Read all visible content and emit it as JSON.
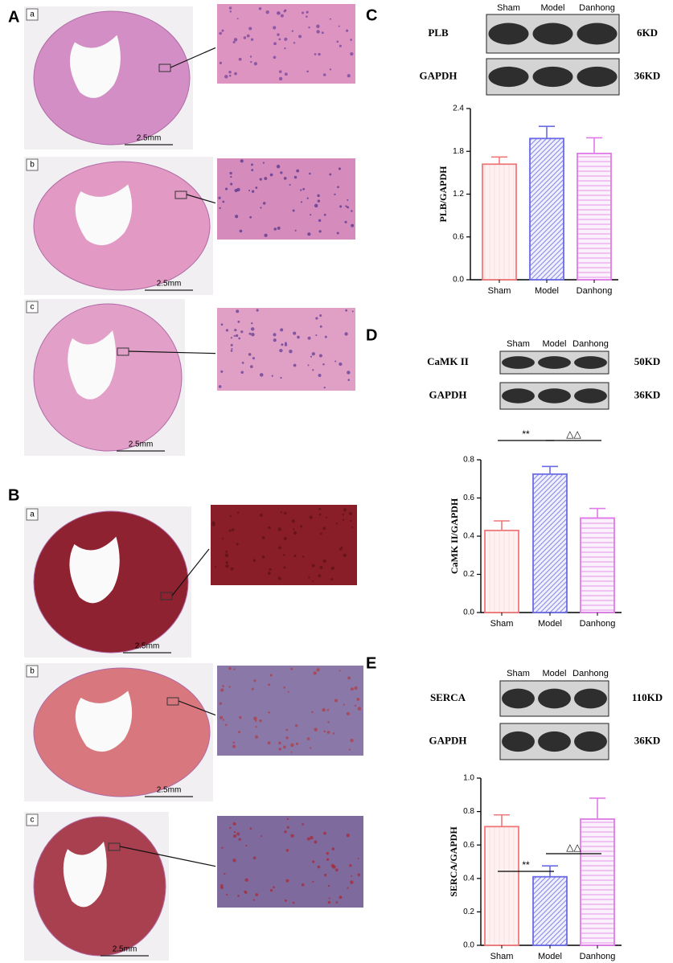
{
  "histology": [
    {
      "label": "A",
      "rows": [
        {
          "label": "a",
          "scale": "2.5mm"
        },
        {
          "label": "b",
          "scale": "2.5mm"
        },
        {
          "label": "c",
          "scale": "2.5mm"
        }
      ]
    },
    {
      "label": "B",
      "rows": [
        {
          "label": "a",
          "scale": "2.5mm"
        },
        {
          "label": "b",
          "scale": "2.5mm"
        },
        {
          "label": "c",
          "scale": "2.5mm"
        }
      ]
    }
  ],
  "blots": [
    {
      "label": "C",
      "lanes": [
        "Sham",
        "Model",
        "Danhong"
      ],
      "bands": [
        {
          "name": "PLB",
          "size": "6KD"
        },
        {
          "name": "GAPDH",
          "size": "36KD"
        }
      ]
    },
    {
      "label": "D",
      "lanes": [
        "Sham",
        "Model",
        "Danhong"
      ],
      "bands": [
        {
          "name": "CaMK II",
          "size": "50KD"
        },
        {
          "name": "GAPDH",
          "size": "36KD"
        }
      ]
    },
    {
      "label": "E",
      "lanes": [
        "Sham",
        "Model",
        "Danhong"
      ],
      "bands": [
        {
          "name": "SERCA",
          "size": "110KD"
        },
        {
          "name": "GAPDH",
          "size": "36KD"
        }
      ]
    }
  ],
  "chart_data": [
    {
      "type": "bar",
      "ylabel": "PLB/GAPDH",
      "categories": [
        "Sham",
        "Model",
        "Danhong"
      ],
      "values": [
        1.62,
        1.98,
        1.77
      ],
      "errors": [
        0.1,
        0.17,
        0.22
      ],
      "colors": [
        "#f07878",
        "#6b6be6",
        "#e07ae8"
      ],
      "ylim": [
        0,
        2.4
      ],
      "yticks": [
        {
          "value": 0,
          "label": "0.0"
        },
        0.6,
        1.2,
        1.8,
        2.4
      ],
      "annotations": []
    },
    {
      "type": "bar",
      "ylabel": "CaMK II/GAPDH",
      "categories": [
        "Sham",
        "Model",
        "Danhong"
      ],
      "values": [
        0.43,
        0.725,
        0.495
      ],
      "errors": [
        0.05,
        0.04,
        0.05
      ],
      "colors": [
        "#f07878",
        "#6b6be6",
        "#e07ae8"
      ],
      "ylim": [
        0,
        0.8
      ],
      "yticks": [
        {
          "value": 0,
          "label": "0.0"
        },
        0.2,
        0.4,
        0.6,
        0.8
      ],
      "annotations": [
        "**",
        "△△"
      ]
    },
    {
      "type": "bar",
      "ylabel": "SERCA/GAPDH",
      "categories": [
        "Sham",
        "Model",
        "Danhong"
      ],
      "values": [
        0.71,
        0.41,
        0.755
      ],
      "errors": [
        0.07,
        0.065,
        0.125
      ],
      "colors": [
        "#f07878",
        "#6b6be6",
        "#e07ae8"
      ],
      "ylim": [
        0,
        1.0
      ],
      "yticks": [
        {
          "value": 0,
          "label": "0.0"
        },
        0.2,
        0.4,
        0.6,
        0.8,
        {
          "value": 1.0,
          "label": "1.0"
        }
      ],
      "annotations": [
        "**",
        "△△"
      ]
    }
  ]
}
